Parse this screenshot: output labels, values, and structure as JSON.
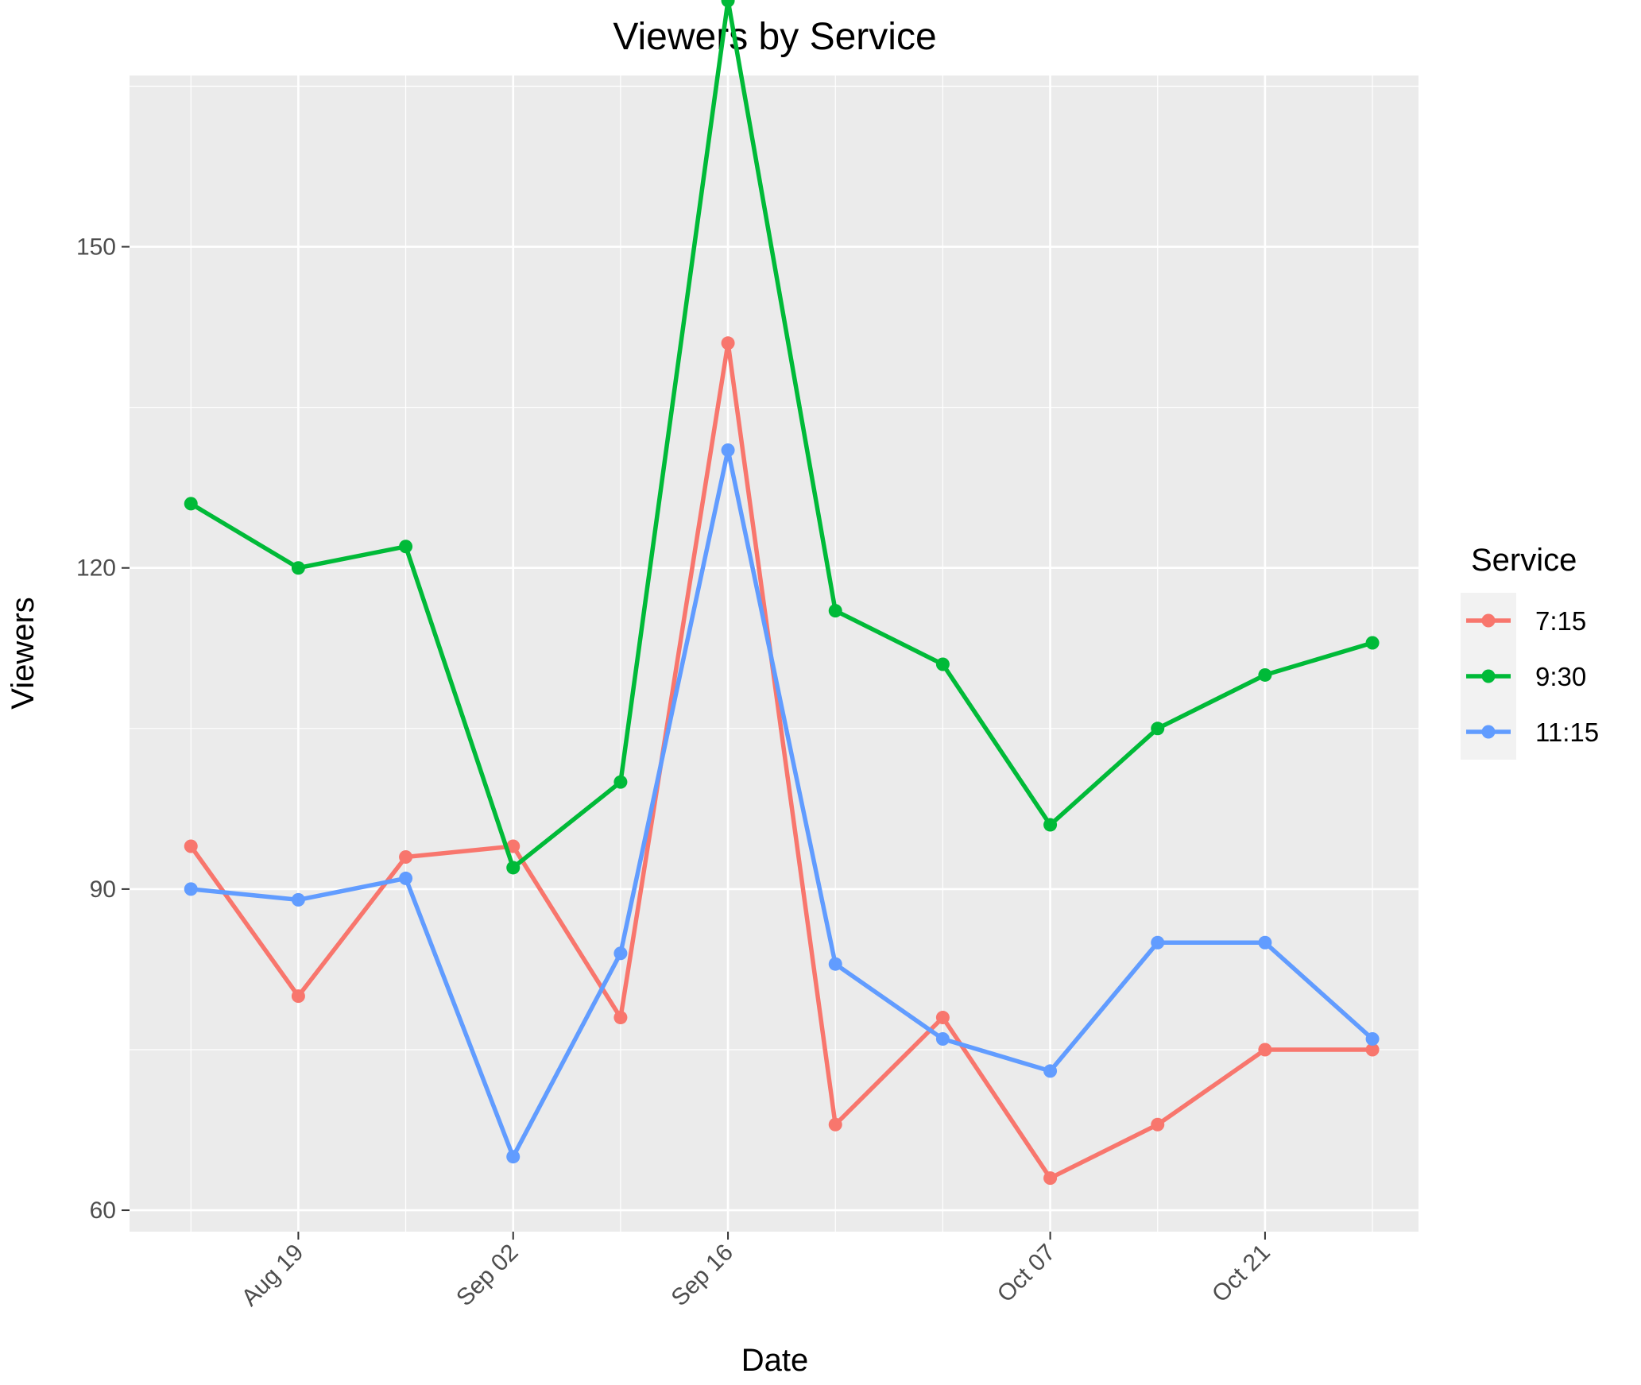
{
  "chart_data": {
    "type": "line",
    "title": "Viewers by Service",
    "xlabel": "Date",
    "ylabel": "Viewers",
    "x": [
      "2018-08-12",
      "2018-08-19",
      "2018-08-26",
      "2018-09-02",
      "2018-09-09",
      "2018-09-16",
      "2018-09-23",
      "2018-09-30",
      "2018-10-07",
      "2018-10-14",
      "2018-10-21",
      "2018-10-28"
    ],
    "xlim": [
      "2018-08-08",
      "2018-10-31"
    ],
    "x_ticks": [
      "2018-08-19",
      "2018-09-02",
      "2018-09-16",
      "2018-10-07",
      "2018-10-21"
    ],
    "x_tick_labels": [
      "Aug 19",
      "Sep 02",
      "Sep 16",
      "Oct 07",
      "Oct 21"
    ],
    "ylim": [
      58,
      166
    ],
    "y_ticks": [
      60,
      90,
      120,
      150
    ],
    "y_tick_labels": [
      "60",
      "90",
      "120",
      "150"
    ],
    "grid": true,
    "legend": {
      "title": "Service",
      "position": "right"
    },
    "series": [
      {
        "name": "7:15",
        "color": "#F8766D",
        "values": [
          94,
          80,
          93,
          94,
          78,
          141,
          68,
          78,
          63,
          68,
          75,
          75
        ]
      },
      {
        "name": "9:30",
        "color": "#00BA38",
        "values": [
          126,
          120,
          122,
          92,
          100,
          173,
          116,
          111,
          96,
          105,
          110,
          113
        ]
      },
      {
        "name": "11:15",
        "color": "#619CFF",
        "values": [
          90,
          89,
          91,
          65,
          84,
          131,
          83,
          76,
          73,
          85,
          85,
          76
        ]
      }
    ],
    "colors": {
      "panel": "#EBEBEB",
      "grid": "#FFFFFF",
      "tick": "#333333",
      "legend_key": "#F2F2F2"
    }
  }
}
